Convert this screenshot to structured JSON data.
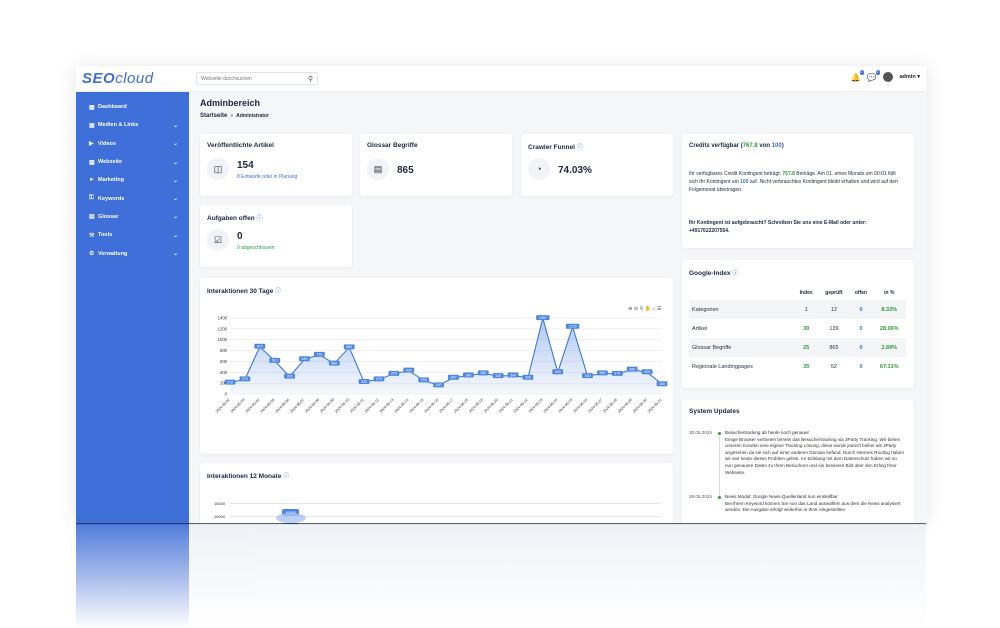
{
  "header": {
    "logo_seo": "SEO",
    "logo_cloud": "cloud",
    "search_placeholder": "Webseite durchsuchen",
    "search_icon": "search-icon",
    "notif_badge": "0",
    "msg_badge": "0",
    "username": "admin"
  },
  "sidebar": {
    "items": [
      {
        "label": "Dashboard",
        "icon": "grid-icon",
        "has_chevron": false
      },
      {
        "label": "Medien & Links",
        "icon": "media-icon",
        "has_chevron": true
      },
      {
        "label": "Videos",
        "icon": "video-icon",
        "has_chevron": true
      },
      {
        "label": "Webseite",
        "icon": "website-icon",
        "has_chevron": true
      },
      {
        "label": "Marketing",
        "icon": "megaphone-icon",
        "has_chevron": true
      },
      {
        "label": "Keywords",
        "icon": "key-icon",
        "has_chevron": true
      },
      {
        "label": "Glossar",
        "icon": "book-icon",
        "has_chevron": true
      },
      {
        "label": "Tools",
        "icon": "wrench-icon",
        "has_chevron": true
      },
      {
        "label": "Verwaltung",
        "icon": "gear-icon",
        "has_chevron": true
      }
    ]
  },
  "page": {
    "title": "Adminbereich",
    "breadcrumb_home": "Startseite",
    "breadcrumb_sep": "»",
    "breadcrumb_current": "Administrator"
  },
  "stats": {
    "articles": {
      "title": "Veröffentlichte Artikel",
      "value": "154",
      "sub": "8 Entwürfe oder in Planung"
    },
    "glossary": {
      "title": "Glossar Begriffe",
      "value": "865"
    },
    "crawler": {
      "title": "Crawler Funnel",
      "value": "74.03%"
    },
    "tasks": {
      "title": "Aufgaben offen",
      "value": "0",
      "sub": "0 abgeschlossen"
    }
  },
  "credits": {
    "title_pre": "Credits verfügbar (",
    "available": "767.8",
    "title_mid": " von ",
    "total": "100",
    "title_post": ")",
    "p1_a": "Ihr verfügbares Credit Kontingent beträgt: ",
    "p1_b": "767.8",
    "p1_c": " Beiträge. Am 01. eines Monats um 00:01 füllt sich Ihr Kontingent um ",
    "p1_d": "100",
    "p1_e": " auf. Nicht verbrauchtes Kontingent bleibt erhalten und wird auf den Folgemonat übertragen.",
    "p2": "Ihr Kontingent ist aufgebraucht? Schreiben Sie uns eine E-Mail oder unter: +4917622207554."
  },
  "google_index": {
    "title": "Google-Index",
    "headers": [
      "",
      "Index",
      "geprüft",
      "offen",
      "in %"
    ],
    "rows": [
      {
        "name": "Kategorien",
        "index": "1",
        "checked": "12",
        "open": "0",
        "pct": "8.33%"
      },
      {
        "name": "Artikel",
        "index": "39",
        "checked": "139",
        "open": "0",
        "pct": "28.06%"
      },
      {
        "name": "Glossar Begriffe",
        "index": "25",
        "checked": "865",
        "open": "0",
        "pct": "2.89%"
      },
      {
        "name": "Regionale Landingpages",
        "index": "35",
        "checked": "52",
        "open": "0",
        "pct": "67.31%"
      }
    ]
  },
  "updates": {
    "title": "System Updates",
    "items": [
      {
        "date": "30.05.2024",
        "title": "Besuchertracking ab heute noch genauer",
        "body": "Einige Browser verbieten bereits das Besuchertracking via 3Party Tracking. Wir bieten unseren Kunden eine eigene Tracking Lösung, diese wurde jedoch bisher als 3Party angesehen da sie sich auf einer anderen Domain befand. Durch internes Routing haben wir seit heute dieses Problem gelöst. Im Einklang mit dem Datenschutz haben wir so nun genauere Daten zu Ihren Besuchern und ein besseres Bild über den Erfolg Ihrer Webseite."
      },
      {
        "date": "26.05.2024",
        "title": "News Modul: Google News-Quellenland nun einstellbar",
        "body": "Bei Ihrem Keyword können Sie nun das Land auswählen aus dem die News analysiert werden. Die Ausgabe erfolgt weiterhin in Ihrer eingestellten"
      }
    ]
  },
  "chart1": {
    "title": "Interaktionen 30 Tage",
    "info_icon": "info-icon",
    "chart_data": {
      "type": "area",
      "x": [
        "2024-05-02",
        "2024-05-03",
        "2024-05-04",
        "2024-05-05",
        "2024-05-06",
        "2024-05-07",
        "2024-05-08",
        "2024-05-09",
        "2024-05-10",
        "2024-05-11",
        "2024-05-12",
        "2024-05-13",
        "2024-05-14",
        "2024-05-15",
        "2024-05-16",
        "2024-05-17",
        "2024-05-18",
        "2024-05-19",
        "2024-05-20",
        "2024-05-21",
        "2024-05-22",
        "2024-05-23",
        "2024-05-24",
        "2024-05-25",
        "2024-05-26",
        "2024-05-27",
        "2024-05-28",
        "2024-05-29",
        "2024-05-30",
        "2024-05-31"
      ],
      "values": [
        210,
        270,
        870,
        610,
        320,
        640,
        720,
        560,
        860,
        220,
        270,
        370,
        430,
        250,
        160,
        300,
        340,
        380,
        330,
        340,
        300,
        1397,
        400,
        1239,
        330,
        380,
        370,
        450,
        400,
        180
      ],
      "yticks": [
        "0",
        "200",
        "400",
        "600",
        "800",
        "1000",
        "1200",
        "1400"
      ],
      "ylim": [
        0,
        1400
      ]
    }
  },
  "chart2": {
    "title": "Interaktionen 12 Monate",
    "yticks": [
      "18000",
      "16000"
    ],
    "peak_label": "16950",
    "peak_label2": "16950"
  }
}
